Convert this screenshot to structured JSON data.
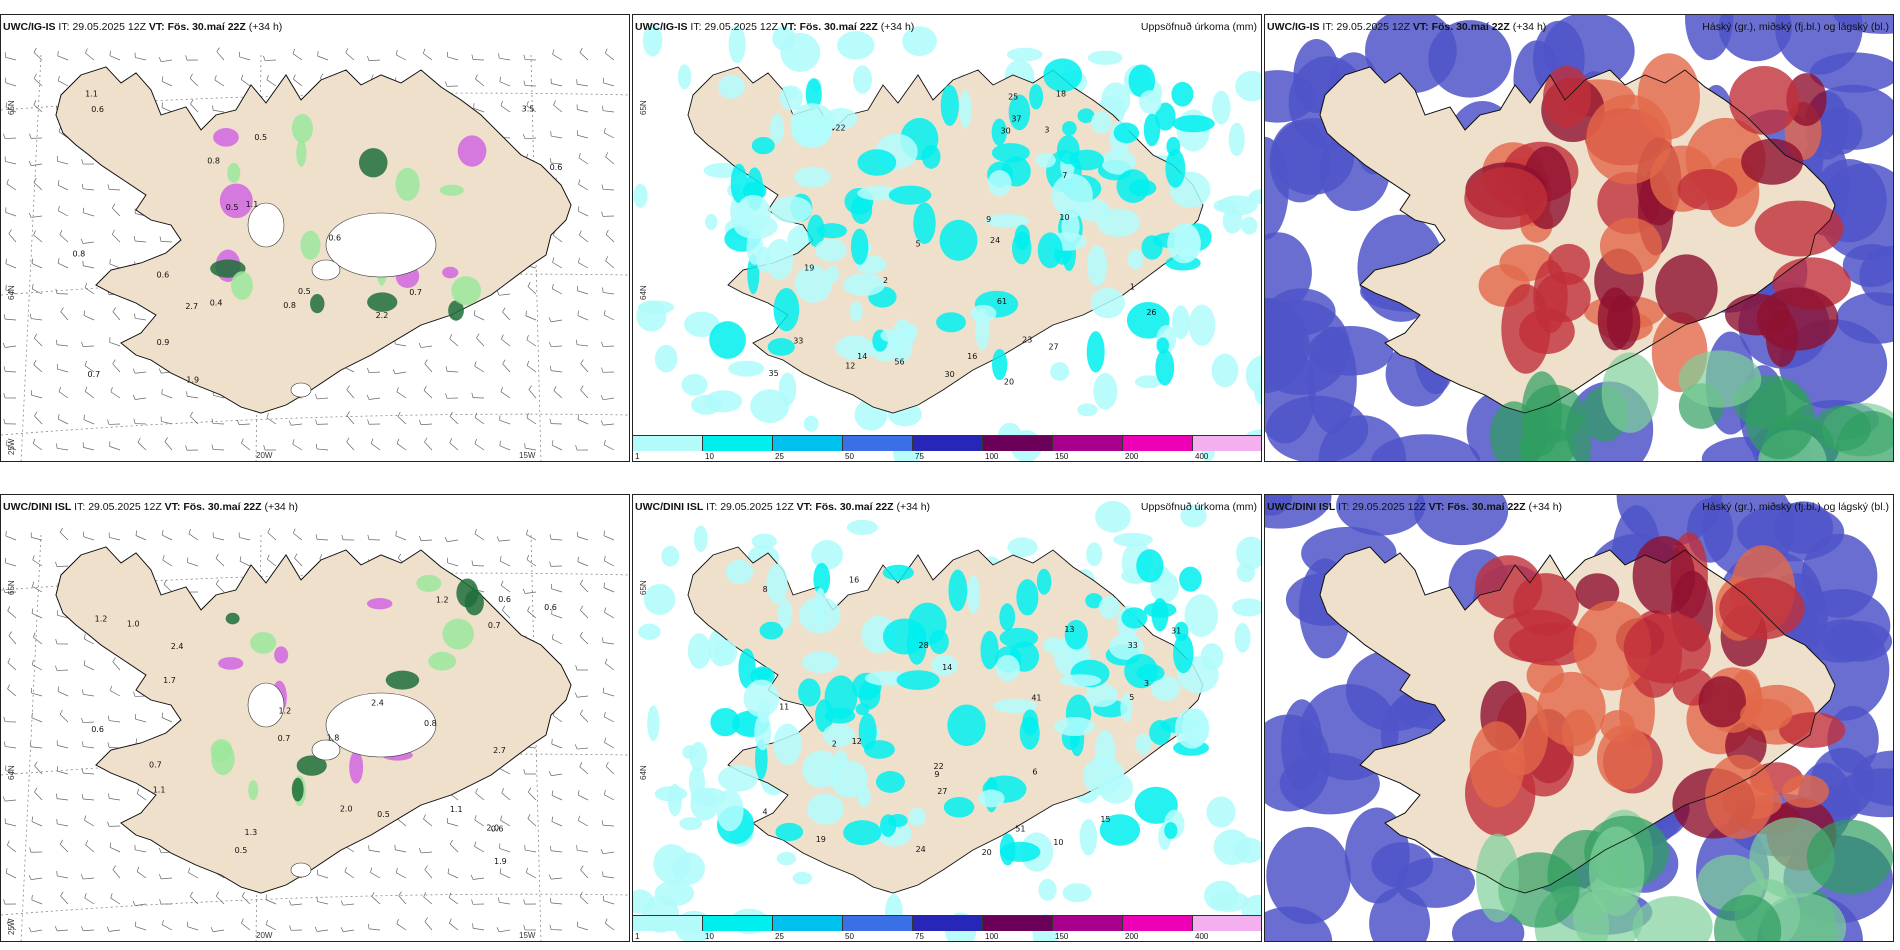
{
  "panels": [
    {
      "model": "UWC/IG-IS",
      "it_label": "IT:",
      "it_value": "29.05.2025 12Z",
      "vt_label": "VT:",
      "vt_value": "Fös. 30.maí 22Z",
      "lead": "(+34 h)",
      "right_title": "",
      "lat_labels": [
        "65N",
        "64N",
        "25W"
      ],
      "lon_labels": [
        "20W",
        "15W"
      ],
      "values": [
        "0.6",
        "1.1",
        "0.8",
        "3.5",
        "0.6",
        "2.2",
        "0.5",
        "0.4",
        "0.7",
        "0.7",
        "2.7",
        "0.6",
        "1.9",
        "0.6",
        "0.5",
        "0.5",
        "0.8",
        "0.9",
        "0.8",
        "1.1"
      ]
    },
    {
      "model": "UWC/IG-IS",
      "it_label": "IT:",
      "it_value": "29.05.2025 12Z",
      "vt_label": "VT:",
      "vt_value": "Fös. 30.maí 22Z",
      "lead": "(+34 h)",
      "right_title": "Uppsöfnuð úrkoma (mm)",
      "lat_labels": [
        "65N",
        "64N"
      ],
      "lon_labels": [],
      "values": [
        "14",
        "24",
        "20",
        "37",
        "30",
        "27",
        "56",
        "33",
        "35",
        "26",
        "25",
        "19",
        "16",
        "12",
        "22",
        "61",
        "30",
        "23",
        "5",
        "9",
        "3",
        "2",
        "1",
        "7",
        "10",
        "18"
      ]
    },
    {
      "model": "UWC/IG-IS",
      "it_label": "IT:",
      "it_value": "29.05.2025 12Z",
      "vt_label": "VT:",
      "vt_value": "Fös. 30.maí 22Z",
      "lead": "(+34 h)",
      "right_title": "Háský (gr.), miðský (fj.bl.) og lágský (bl.)",
      "lat_labels": [],
      "lon_labels": [],
      "values": []
    },
    {
      "model": "UWC/DINI ISL",
      "it_label": "IT:",
      "it_value": "29.05.2025 12Z",
      "vt_label": "VT:",
      "vt_value": "Fös. 30.maí 22Z",
      "lead": "(+34 h)",
      "right_title": "",
      "lat_labels": [
        "65N",
        "64N",
        "25W"
      ],
      "lon_labels": [
        "20W",
        "15W"
      ],
      "values": [
        "2.7",
        "0.8",
        "0.6",
        "1.2",
        "2.0",
        "0.6",
        "1.2",
        "0.6",
        "0.5",
        "1.3",
        "0.7",
        "2.0",
        "1.1",
        "1.8",
        "1.9",
        "1.7",
        "2.4",
        "0.5",
        "1.2",
        "0.6",
        "0.7",
        "2.4",
        "1.0",
        "1.1",
        "0.7"
      ]
    },
    {
      "model": "UWC/DINI ISL",
      "it_label": "IT:",
      "it_value": "29.05.2025 12Z",
      "vt_label": "VT:",
      "vt_value": "Fös. 30.maí 22Z",
      "lead": "(+34 h)",
      "right_title": "Uppsöfnuð úrkoma (mm)",
      "lat_labels": [
        "65N",
        "64N"
      ],
      "lon_labels": [],
      "values": [
        "11",
        "16",
        "14",
        "13",
        "27",
        "31",
        "28",
        "33",
        "24",
        "20",
        "15",
        "19",
        "22",
        "51",
        "41",
        "9",
        "6",
        "4",
        "3",
        "2",
        "5",
        "8",
        "10",
        "12"
      ]
    },
    {
      "model": "UWC/DINI ISL",
      "it_label": "IT:",
      "it_value": "29.05.2025 12Z",
      "vt_label": "VT:",
      "vt_value": "Fös. 30.maí 22Z",
      "lead": "(+34 h)",
      "right_title": "Háský (gr.), miðský (fj.bl.) og lágský (bl.)",
      "lat_labels": [],
      "lon_labels": [],
      "values": []
    }
  ],
  "colorbar": {
    "ticks": [
      "1",
      "10",
      "25",
      "50",
      "75",
      "100",
      "150",
      "200",
      "400"
    ],
    "colors": [
      "#b3fbfb",
      "#00eeee",
      "#00c0ee",
      "#3a6fe6",
      "#2626b8",
      "#6a0058",
      "#a8008c",
      "#ee00b4",
      "#f4b0ee"
    ]
  },
  "colors": {
    "land": "#efe0cc",
    "precip_light": "#b3fbfb",
    "precip_mid": "#00eeee",
    "green_light": "#9be89b",
    "green_dark": "#1e6e3a",
    "violet": "#d066e0",
    "cloud_low": "#4f55c8",
    "cloud_mid": "#8e1030",
    "cloud_high": "#2f9e60"
  }
}
